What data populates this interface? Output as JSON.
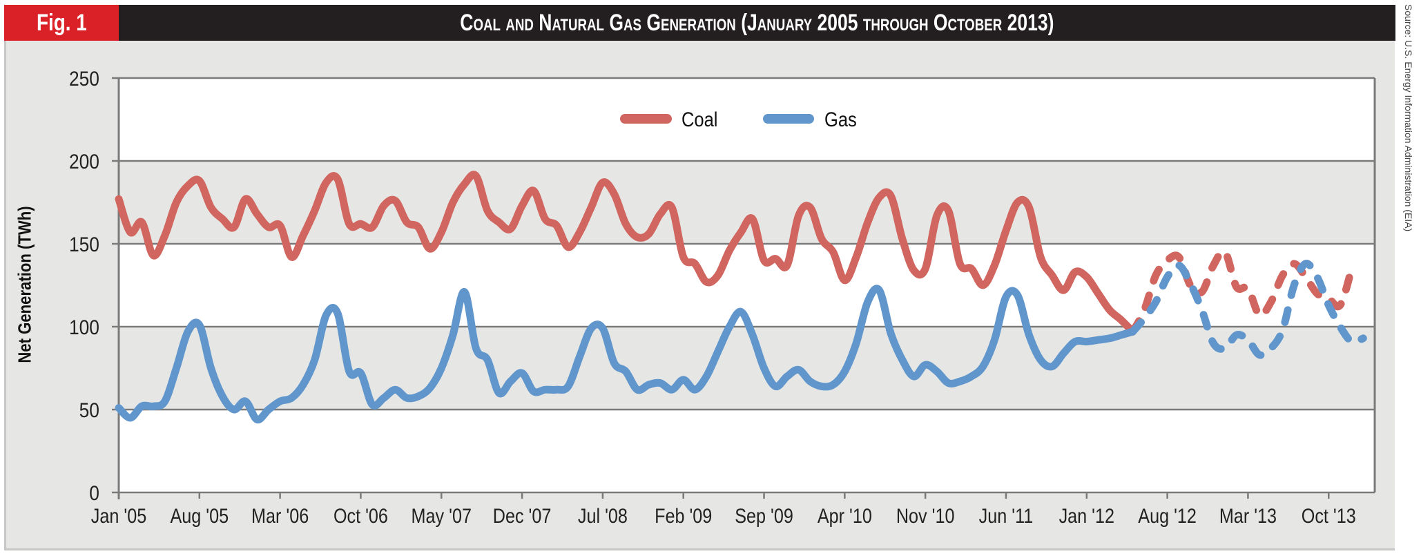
{
  "header": {
    "figure_label": "Fig. 1",
    "title": "Coal and Natural Gas Generation (January 2005 through October 2013)"
  },
  "source": "Source: U.S. Energy Information Administration (EIA)",
  "colors": {
    "coal": "#d0665f",
    "gas": "#6196cc",
    "badge": "#da2128",
    "title_bar": "#231f20",
    "panel": "#e6e7e4"
  },
  "chart_data": {
    "type": "line",
    "title": "Coal and Natural Gas Generation (January 2005 through October 2013)",
    "xlabel": "",
    "ylabel": "Net Generation (TWh)",
    "ylim": [
      0,
      250
    ],
    "yticks": [
      0,
      50,
      100,
      150,
      200,
      250
    ],
    "grid": true,
    "alternating_bands": true,
    "legend_position": "top-center",
    "x_start": "Jan 2005",
    "x_unit": "month",
    "x_tick_labels": [
      "Jan '05",
      "Aug '05",
      "Mar '06",
      "Oct '06",
      "May '07",
      "Dec '07",
      "Jul '08",
      "Feb '09",
      "Sep '09",
      "Apr '10",
      "Nov '10",
      "Jun '11",
      "Jan '12",
      "Aug '12",
      "Mar '13",
      "Oct '13"
    ],
    "x_tick_interval_months": 7,
    "x_max_month_index": 109,
    "series": [
      {
        "name": "Coal",
        "style": "solid",
        "start_month_index": 0,
        "values": [
          177,
          157,
          163,
          143,
          155,
          175,
          185,
          188,
          172,
          165,
          160,
          177,
          168,
          160,
          161,
          142,
          155,
          170,
          187,
          189,
          162,
          162,
          160,
          173,
          176,
          163,
          160,
          147,
          157,
          175,
          186,
          191,
          170,
          163,
          159,
          173,
          182,
          165,
          161,
          148,
          157,
          172,
          187,
          180,
          162,
          154,
          156,
          168,
          172,
          142,
          138,
          127,
          131,
          146,
          157,
          165,
          140,
          141,
          137,
          167,
          172,
          153,
          145,
          128,
          142,
          163,
          178,
          179,
          153,
          134,
          135,
          167,
          170,
          138,
          135,
          125,
          137,
          158,
          175,
          172,
          142,
          131,
          122,
          133,
          130,
          120,
          110,
          104,
          97
        ]
      },
      {
        "name": "Coal (projected)",
        "style": "dashed",
        "start_month_index": 88,
        "values": [
          97,
          110,
          131,
          140,
          142,
          125,
          121,
          137,
          145,
          124,
          123,
          107,
          115,
          131,
          138,
          130,
          120,
          117,
          113,
          135
        ]
      },
      {
        "name": "Gas",
        "style": "solid",
        "start_month_index": 0,
        "values": [
          51,
          45,
          52,
          52,
          55,
          75,
          97,
          101,
          75,
          58,
          50,
          55,
          44,
          50,
          55,
          57,
          65,
          80,
          107,
          108,
          73,
          72,
          53,
          57,
          62,
          57,
          58,
          63,
          75,
          95,
          121,
          87,
          80,
          60,
          67,
          72,
          61,
          62,
          62,
          64,
          82,
          99,
          99,
          78,
          73,
          62,
          65,
          66,
          62,
          68,
          62,
          70,
          85,
          100,
          109,
          95,
          75,
          64,
          70,
          74,
          67,
          64,
          65,
          73,
          90,
          115,
          122,
          96,
          80,
          70,
          77,
          73,
          66,
          67,
          70,
          76,
          92,
          118,
          119,
          95,
          80,
          76,
          84,
          91,
          91,
          92,
          93,
          95,
          97
        ]
      },
      {
        "name": "Gas (projected)",
        "style": "dashed",
        "start_month_index": 88,
        "values": [
          97,
          105,
          115,
          130,
          137,
          126,
          110,
          90,
          87,
          95,
          92,
          83,
          87,
          98,
          125,
          138,
          130,
          113,
          100,
          91,
          93
        ]
      }
    ],
    "legend": [
      {
        "label": "Coal",
        "series": "Coal"
      },
      {
        "label": "Gas",
        "series": "Gas"
      }
    ]
  }
}
